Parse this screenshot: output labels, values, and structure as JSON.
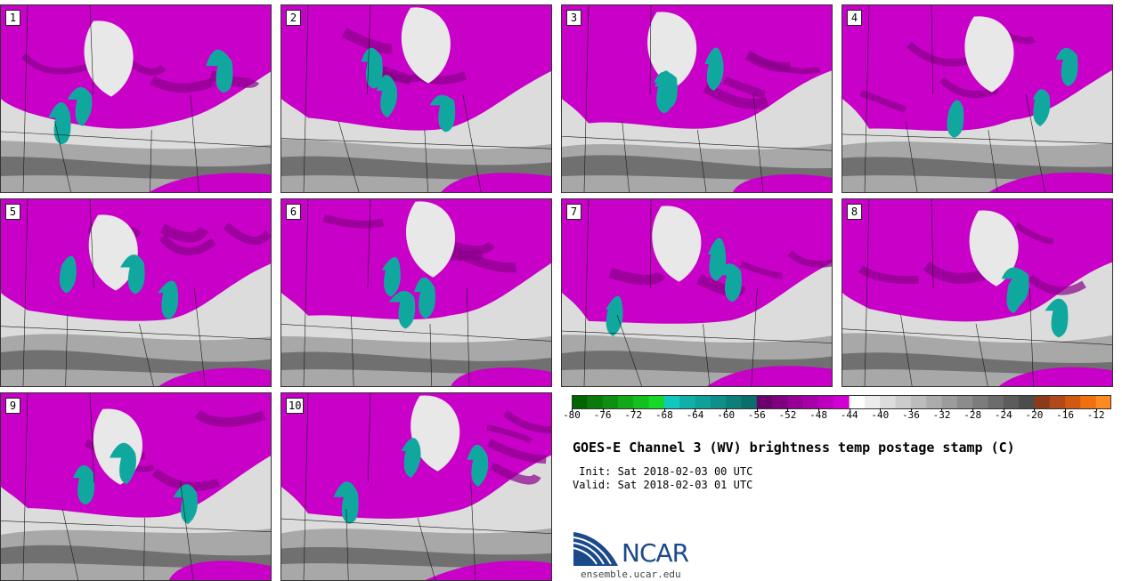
{
  "members": [
    {
      "label": "1"
    },
    {
      "label": "2"
    },
    {
      "label": "3"
    },
    {
      "label": "4"
    },
    {
      "label": "5"
    },
    {
      "label": "6"
    },
    {
      "label": "7"
    },
    {
      "label": "8"
    },
    {
      "label": "9"
    },
    {
      "label": "10"
    }
  ],
  "colorbar": {
    "min": -80,
    "max": -10,
    "step": 2,
    "tick_labels": [
      "-80",
      "-76",
      "-72",
      "-68",
      "-64",
      "-60",
      "-56",
      "-52",
      "-48",
      "-44",
      "-40",
      "-36",
      "-32",
      "-28",
      "-24",
      "-20",
      "-16",
      "-12"
    ],
    "colors": [
      "#006400",
      "#0a7a0a",
      "#0e8f12",
      "#12a818",
      "#14c020",
      "#16d828",
      "#10c8c0",
      "#10b0aa",
      "#10a09a",
      "#0e8f8a",
      "#0c7f7a",
      "#0a6e6a",
      "#6a006a",
      "#7e007e",
      "#930093",
      "#a800a8",
      "#bd00bd",
      "#d200d2",
      "#ffffff",
      "#ececec",
      "#dcdcdc",
      "#cccccc",
      "#bcbcbc",
      "#acacac",
      "#9c9c9c",
      "#8c8c8c",
      "#7c7c7c",
      "#6c6c6c",
      "#5c5c5c",
      "#4c4c4c",
      "#8b3a1a",
      "#b04a1a",
      "#d05a10",
      "#f07010",
      "#ff8a20"
    ]
  },
  "colors": {
    "magenta": "#c800c8",
    "magenta_dark": "#8a008a",
    "teal": "#10a89e",
    "gray_light": "#dcdcdc",
    "gray_mid": "#a8a8a8",
    "gray_dark": "#707070",
    "ncar_blue": "#1b4a8a"
  },
  "title": "GOES-E Channel 3 (WV) brightness temp postage stamp (C)",
  "init_line": " Init: Sat 2018-02-03 00 UTC",
  "valid_line": "Valid: Sat 2018-02-03 01 UTC",
  "logo_text": "NCAR",
  "site_url": "ensemble.ucar.edu"
}
